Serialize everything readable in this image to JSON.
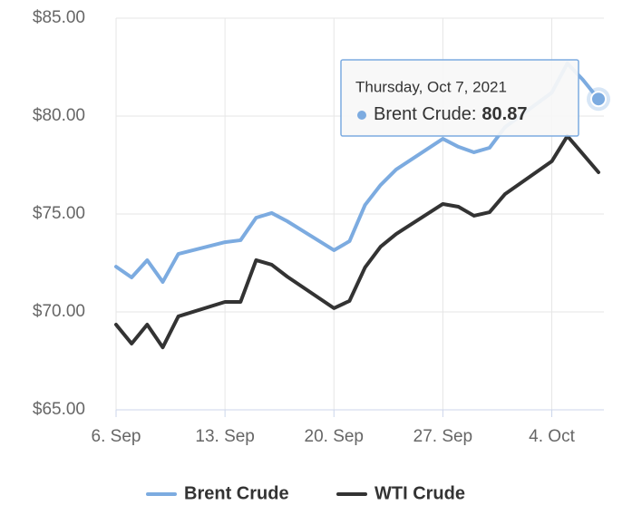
{
  "chart_data": {
    "type": "line",
    "x": [
      "2021-09-06",
      "2021-09-07",
      "2021-09-08",
      "2021-09-09",
      "2021-09-10",
      "2021-09-13",
      "2021-09-14",
      "2021-09-15",
      "2021-09-16",
      "2021-09-17",
      "2021-09-20",
      "2021-09-21",
      "2021-09-22",
      "2021-09-23",
      "2021-09-24",
      "2021-09-27",
      "2021-09-28",
      "2021-09-29",
      "2021-09-30",
      "2021-10-01",
      "2021-10-04",
      "2021-10-05",
      "2021-10-06",
      "2021-10-07"
    ],
    "series": [
      {
        "name": "Brent Crude",
        "color": "#7cabe0",
        "values": [
          72.31,
          71.76,
          72.64,
          71.53,
          72.96,
          73.56,
          73.66,
          74.81,
          75.05,
          74.63,
          73.15,
          73.61,
          75.46,
          76.48,
          77.27,
          78.84,
          78.43,
          78.15,
          78.38,
          79.44,
          81.2,
          82.69,
          81.85,
          80.87
        ]
      },
      {
        "name": "WTI Crude",
        "color": "#333333",
        "values": [
          69.35,
          68.38,
          69.35,
          68.19,
          69.77,
          70.51,
          70.51,
          72.64,
          72.41,
          71.8,
          70.19,
          70.56,
          72.27,
          73.33,
          73.98,
          75.51,
          75.37,
          74.91,
          75.09,
          76.02,
          77.69,
          78.98,
          78.06,
          77.13
        ]
      }
    ],
    "xlim": [
      "2021-09-06",
      "2021-10-07"
    ],
    "xticks": [
      {
        "value": "2021-09-06",
        "label": "6. Sep"
      },
      {
        "value": "2021-09-13",
        "label": "13. Sep"
      },
      {
        "value": "2021-09-20",
        "label": "20. Sep"
      },
      {
        "value": "2021-09-27",
        "label": "27. Sep"
      },
      {
        "value": "2021-10-04",
        "label": "4. Oct"
      }
    ],
    "ylim": [
      65,
      85
    ],
    "yticks": [
      {
        "value": 65,
        "label": "$65.00"
      },
      {
        "value": 70,
        "label": "$70.00"
      },
      {
        "value": 75,
        "label": "$75.00"
      },
      {
        "value": 80,
        "label": "$80.00"
      },
      {
        "value": 85,
        "label": "$85.00"
      }
    ],
    "grid": true,
    "legend": "bottom",
    "tooltip": {
      "title": "Thursday, Oct 7, 2021",
      "label": "Brent Crude:"
    }
  }
}
